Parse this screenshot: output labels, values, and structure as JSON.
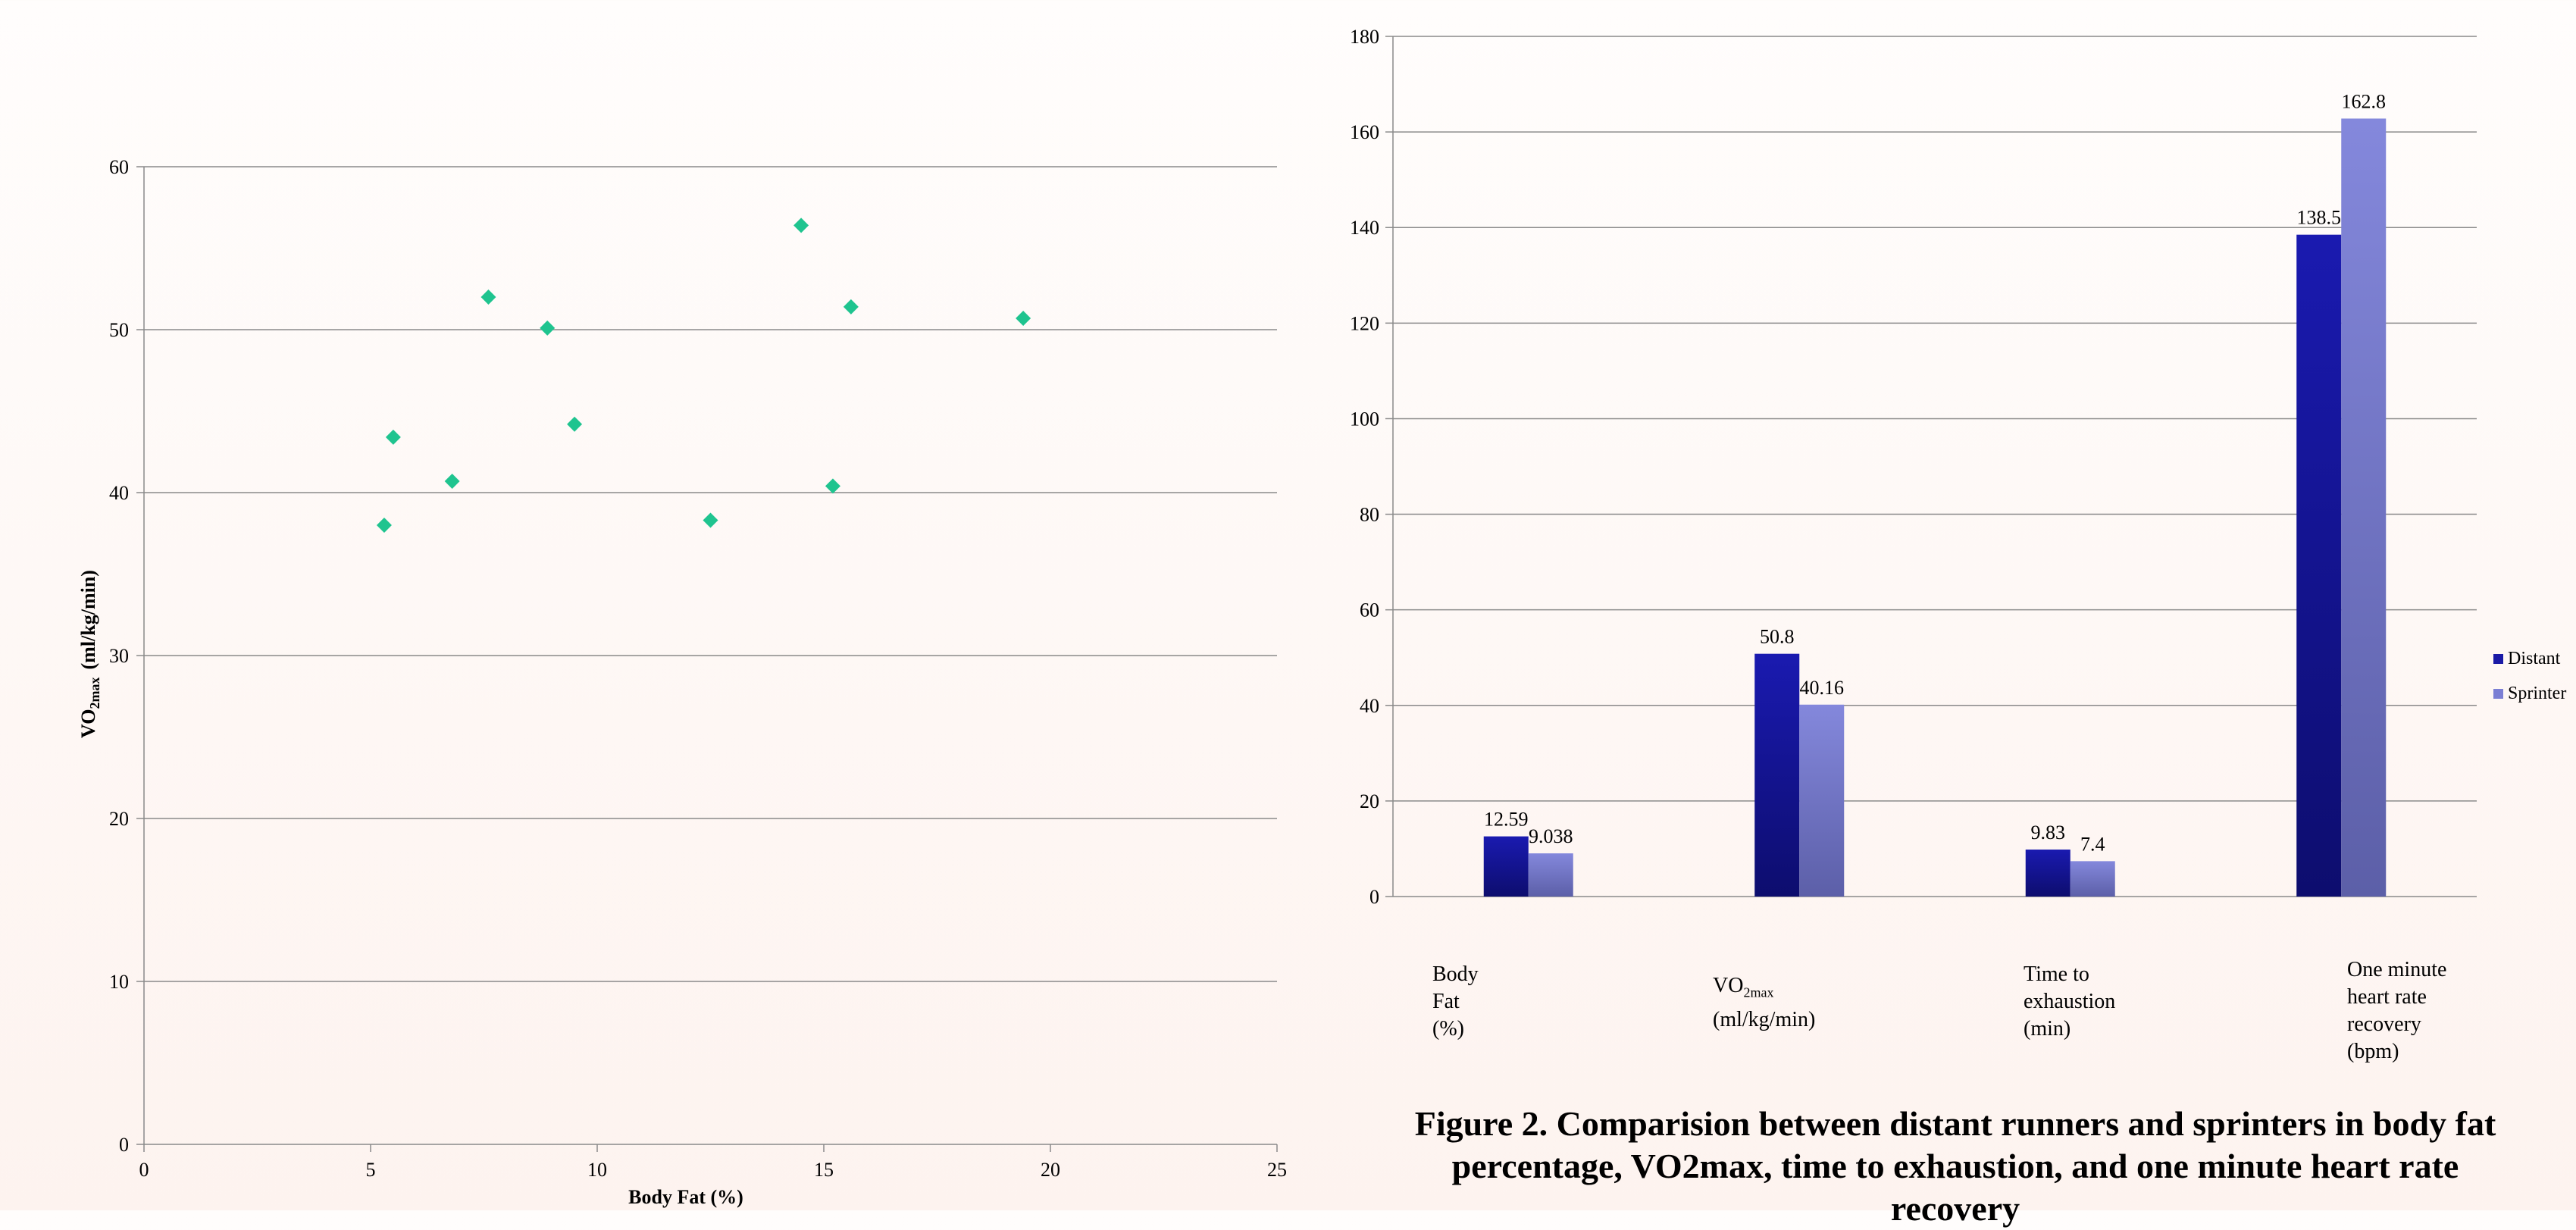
{
  "chart_data": [
    {
      "type": "scatter",
      "xlabel": "Body Fat (%)",
      "ylabel_main": "VO",
      "ylabel_sub": "2max",
      "ylabel_rest": "(ml/kg/min)",
      "xlim": [
        0,
        25
      ],
      "ylim": [
        0,
        60
      ],
      "xticks": [
        0,
        5,
        10,
        15,
        20,
        25
      ],
      "yticks": [
        0,
        10,
        20,
        30,
        40,
        50,
        60
      ],
      "grid": true,
      "marker_color": "#1fc48f",
      "points": [
        {
          "x": 5.3,
          "y": 38.0
        },
        {
          "x": 5.5,
          "y": 43.4
        },
        {
          "x": 6.8,
          "y": 40.7
        },
        {
          "x": 7.6,
          "y": 52.0
        },
        {
          "x": 8.9,
          "y": 50.1
        },
        {
          "x": 9.5,
          "y": 44.2
        },
        {
          "x": 12.5,
          "y": 38.3
        },
        {
          "x": 14.5,
          "y": 56.4
        },
        {
          "x": 15.2,
          "y": 40.4
        },
        {
          "x": 15.6,
          "y": 51.4
        },
        {
          "x": 19.4,
          "y": 50.7
        }
      ]
    },
    {
      "type": "bar",
      "ylim": [
        0,
        180
      ],
      "yticks": [
        0,
        20,
        40,
        60,
        80,
        100,
        120,
        140,
        160,
        180
      ],
      "grid": true,
      "legend_position": "right",
      "categories": [
        {
          "lines": [
            "Body",
            "Fat",
            "(%)"
          ]
        },
        {
          "lines": [
            "VO2max",
            "(ml/kg/min)"
          ],
          "main": "VO",
          "sub": "2max",
          "rest": "(ml/kg/min)"
        },
        {
          "lines": [
            "Time to",
            "exhaustion",
            "(min)"
          ]
        },
        {
          "lines": [
            "One minute",
            "heart rate",
            "recovery",
            "(bpm)"
          ]
        }
      ],
      "series": [
        {
          "name": "Distant",
          "color": "#1a1aa6",
          "values": [
            12.59,
            50.8,
            9.83,
            138.5
          ],
          "labels": [
            "12.59",
            "50.8",
            "9.83",
            "138.5"
          ]
        },
        {
          "name": "Sprinter",
          "color": "#7b7fd4",
          "values": [
            9.038,
            40.16,
            7.4,
            162.8
          ],
          "labels": [
            "9.038",
            "40.16",
            "7.4",
            "162.8"
          ]
        }
      ]
    }
  ],
  "caption": "Figure 2. Comparision between distant runners and sprinters in body fat percentage, VO2max,  time to exhaustion, and one minute heart rate recovery"
}
